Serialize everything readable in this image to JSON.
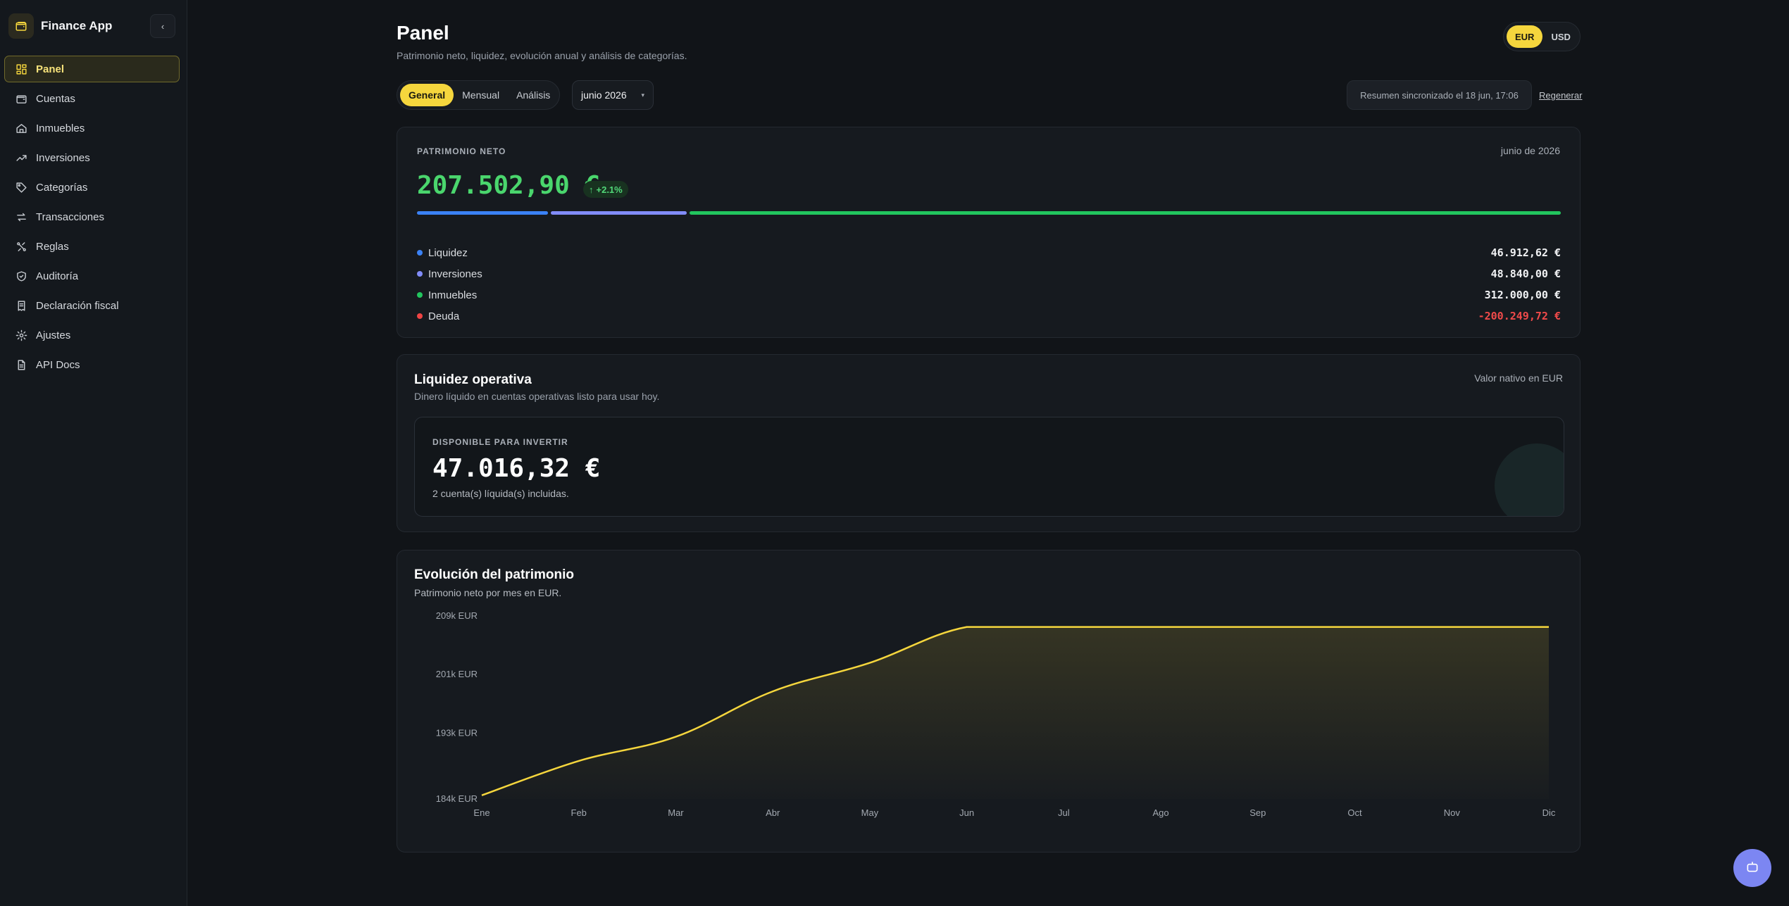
{
  "app": {
    "name": "Finance App",
    "collapse_icon": "chevron-left-icon"
  },
  "sidebar": {
    "items": [
      {
        "label": "Panel",
        "icon": "dashboard-icon",
        "active": true
      },
      {
        "label": "Cuentas",
        "icon": "wallet-icon"
      },
      {
        "label": "Inmuebles",
        "icon": "home-icon"
      },
      {
        "label": "Inversiones",
        "icon": "trending-up-icon"
      },
      {
        "label": "Categorías",
        "icon": "tag-icon"
      },
      {
        "label": "Transacciones",
        "icon": "arrows-swap-icon"
      },
      {
        "label": "Reglas",
        "icon": "rules-icon"
      },
      {
        "label": "Auditoría",
        "icon": "shield-check-icon"
      },
      {
        "label": "Declaración fiscal",
        "icon": "receipt-icon"
      },
      {
        "label": "Ajustes",
        "icon": "gear-icon"
      },
      {
        "label": "API Docs",
        "icon": "document-icon"
      }
    ]
  },
  "header": {
    "title": "Panel",
    "subtitle": "Patrimonio neto, liquidez, evolución anual y análisis de categorías.",
    "currencies": [
      "EUR",
      "USD"
    ],
    "selected_currency": "EUR"
  },
  "toolbar": {
    "tabs": [
      "General",
      "Mensual",
      "Análisis"
    ],
    "active_tab": "General",
    "month": "junio 2026",
    "sync_note": "Resumen sincronizado el 18 jun, 17:06",
    "regenerate": "Regenerar"
  },
  "net_worth": {
    "label": "PATRIMONIO NETO",
    "date": "junio de 2026",
    "value": "207.502,90 €",
    "change": "+2.1%",
    "breakdown": [
      {
        "label": "Liquidez",
        "value": "46.912,62 €",
        "color": "#3b82f6",
        "amount": 46912.62
      },
      {
        "label": "Inversiones",
        "value": "48.840,00 €",
        "color": "#818cf8",
        "amount": 48840.0
      },
      {
        "label": "Inmuebles",
        "value": "312.000,00 €",
        "color": "#22c55e",
        "amount": 312000.0
      },
      {
        "label": "Deuda",
        "value": "-200.249,72 €",
        "color": "#ef4444",
        "amount": -200249.72
      }
    ]
  },
  "liquidity": {
    "title": "Liquidez operativa",
    "subtitle": "Dinero líquido en cuentas operativas listo para usar hoy.",
    "native_note": "Valor nativo en EUR",
    "available_label": "DISPONIBLE PARA INVERTIR",
    "available_value": "47.016,32 €",
    "accounts_note": "2 cuenta(s) líquida(s) incluidas."
  },
  "evolution": {
    "title": "Evolución del patrimonio",
    "subtitle": "Patrimonio neto por mes en EUR."
  },
  "chart_data": {
    "type": "area",
    "categories": [
      "Ene",
      "Feb",
      "Mar",
      "Abr",
      "May",
      "Jun",
      "Jul",
      "Ago",
      "Sep",
      "Oct",
      "Nov",
      "Dic"
    ],
    "series": [
      {
        "values": [
          184.5,
          189.2,
          192.5,
          198.7,
          202.6,
          207.5,
          207.5,
          207.5,
          207.5,
          207.5,
          207.5,
          207.5
        ]
      }
    ],
    "y_ticks": [
      "209k EUR",
      "201k EUR",
      "193k EUR",
      "184k EUR"
    ],
    "y_tick_values": [
      209,
      201,
      193,
      184
    ],
    "ylim": [
      184,
      209
    ],
    "line_color": "#f5d63d",
    "grid": false
  },
  "colors": {
    "accent": "#f5d63d",
    "positive": "#4ad66d",
    "negative": "#f04a4a",
    "assistant": "#7c86f2"
  },
  "assistant": {
    "icon": "robot-icon"
  }
}
